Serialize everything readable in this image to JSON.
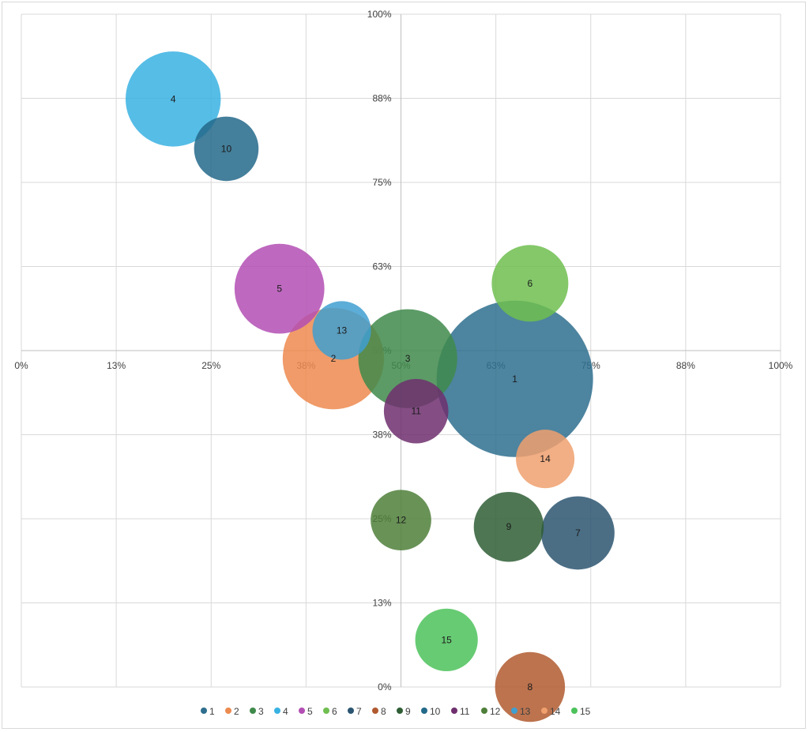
{
  "chart_data": {
    "type": "bubble",
    "x_ticks": [
      "0%",
      "13%",
      "25%",
      "38%",
      "50%",
      "63%",
      "75%",
      "88%",
      "100%"
    ],
    "y_ticks": [
      "0%",
      "13%",
      "25%",
      "38%",
      "50%",
      "63%",
      "75%",
      "88%",
      "100%"
    ],
    "xlim": [
      0,
      1
    ],
    "ylim": [
      0,
      1
    ],
    "grid": true,
    "legend_position": "bottom",
    "series": [
      {
        "name": "1",
        "x": 0.65,
        "y": 0.458,
        "size": 100,
        "color": "#2e6e8e"
      },
      {
        "name": "2",
        "x": 0.411,
        "y": 0.488,
        "size": 42,
        "color": "#ed8a4f"
      },
      {
        "name": "3",
        "x": 0.509,
        "y": 0.488,
        "size": 40,
        "color": "#3f8a4b"
      },
      {
        "name": "4",
        "x": 0.2,
        "y": 0.874,
        "size": 37,
        "color": "#38b2e2"
      },
      {
        "name": "5",
        "x": 0.34,
        "y": 0.592,
        "size": 33,
        "color": "#b34fb4"
      },
      {
        "name": "6",
        "x": 0.67,
        "y": 0.6,
        "size": 24,
        "color": "#6fbe4f"
      },
      {
        "name": "7",
        "x": 0.733,
        "y": 0.229,
        "size": 22,
        "color": "#2b5570"
      },
      {
        "name": "8",
        "x": 0.67,
        "y": 0.0,
        "size": 20,
        "color": "#b05a2f"
      },
      {
        "name": "9",
        "x": 0.642,
        "y": 0.238,
        "size": 20,
        "color": "#2f5e35"
      },
      {
        "name": "10",
        "x": 0.27,
        "y": 0.8,
        "size": 17,
        "color": "#23698a"
      },
      {
        "name": "11",
        "x": 0.52,
        "y": 0.41,
        "size": 17,
        "color": "#6f2f6e"
      },
      {
        "name": "12",
        "x": 0.5,
        "y": 0.248,
        "size": 15,
        "color": "#4f7f3a"
      },
      {
        "name": "13",
        "x": 0.422,
        "y": 0.53,
        "size": 14,
        "color": "#3f9fd0"
      },
      {
        "name": "14",
        "x": 0.69,
        "y": 0.339,
        "size": 14,
        "color": "#f0a06e"
      },
      {
        "name": "15",
        "x": 0.56,
        "y": 0.07,
        "size": 16,
        "color": "#4cc25a"
      }
    ]
  }
}
